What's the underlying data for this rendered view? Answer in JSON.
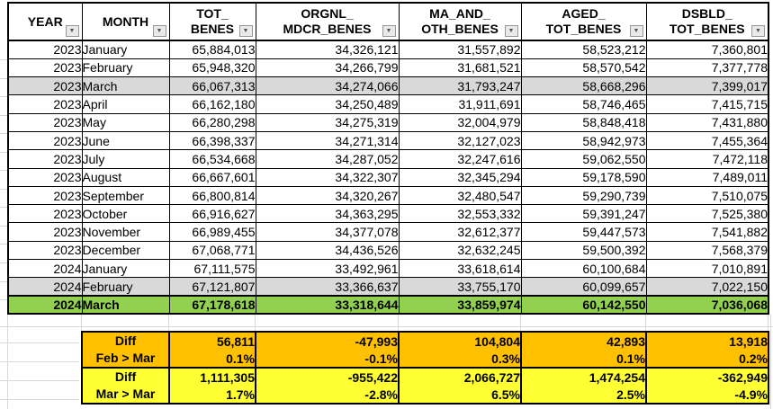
{
  "icons": {
    "filter": "▼"
  },
  "colors": {
    "row_highlight_gray": "#d9d9d9",
    "row_highlight_green": "#92d050",
    "summary_orange": "#ffc000",
    "summary_yellow": "#ffff33",
    "table_border": "#000000",
    "gridline": "#d8d8d8"
  },
  "columns": [
    {
      "l1": "YEAR",
      "l2": ""
    },
    {
      "l1": "MONTH",
      "l2": ""
    },
    {
      "l1": "TOT_",
      "l2": "BENES"
    },
    {
      "l1": "ORGNL_",
      "l2": "MDCR_BENES"
    },
    {
      "l1": "MA_AND_",
      "l2": "OTH_BENES"
    },
    {
      "l1": "AGED_",
      "l2": "TOT_BENES"
    },
    {
      "l1": "DSBLD_",
      "l2": "TOT_BENES"
    }
  ],
  "rows": [
    {
      "year": "2023",
      "month": "January",
      "tot": "65,884,013",
      "orgnl": "34,326,121",
      "ma": "31,557,892",
      "aged": "58,523,212",
      "dsbld": "7,360,801",
      "highlight": "none"
    },
    {
      "year": "2023",
      "month": "February",
      "tot": "65,948,320",
      "orgnl": "34,266,799",
      "ma": "31,681,521",
      "aged": "58,570,542",
      "dsbld": "7,377,778",
      "highlight": "none"
    },
    {
      "year": "2023",
      "month": "March",
      "tot": "66,067,313",
      "orgnl": "34,274,066",
      "ma": "31,793,247",
      "aged": "58,668,296",
      "dsbld": "7,399,017",
      "highlight": "gray"
    },
    {
      "year": "2023",
      "month": "April",
      "tot": "66,162,180",
      "orgnl": "34,250,489",
      "ma": "31,911,691",
      "aged": "58,746,465",
      "dsbld": "7,415,715",
      "highlight": "none"
    },
    {
      "year": "2023",
      "month": "May",
      "tot": "66,280,298",
      "orgnl": "34,275,319",
      "ma": "32,004,979",
      "aged": "58,848,418",
      "dsbld": "7,431,880",
      "highlight": "none"
    },
    {
      "year": "2023",
      "month": "June",
      "tot": "66,398,337",
      "orgnl": "34,271,314",
      "ma": "32,127,023",
      "aged": "58,942,973",
      "dsbld": "7,455,364",
      "highlight": "none"
    },
    {
      "year": "2023",
      "month": "July",
      "tot": "66,534,668",
      "orgnl": "34,287,052",
      "ma": "32,247,616",
      "aged": "59,062,550",
      "dsbld": "7,472,118",
      "highlight": "none"
    },
    {
      "year": "2023",
      "month": "August",
      "tot": "66,667,601",
      "orgnl": "34,322,307",
      "ma": "32,345,294",
      "aged": "59,178,590",
      "dsbld": "7,489,011",
      "highlight": "none"
    },
    {
      "year": "2023",
      "month": "September",
      "tot": "66,800,814",
      "orgnl": "34,320,267",
      "ma": "32,480,547",
      "aged": "59,290,739",
      "dsbld": "7,510,075",
      "highlight": "none"
    },
    {
      "year": "2023",
      "month": "October",
      "tot": "66,916,627",
      "orgnl": "34,363,295",
      "ma": "32,553,332",
      "aged": "59,391,247",
      "dsbld": "7,525,380",
      "highlight": "none"
    },
    {
      "year": "2023",
      "month": "November",
      "tot": "66,989,455",
      "orgnl": "34,377,078",
      "ma": "32,612,377",
      "aged": "59,447,573",
      "dsbld": "7,541,882",
      "highlight": "none"
    },
    {
      "year": "2023",
      "month": "December",
      "tot": "67,068,771",
      "orgnl": "34,436,526",
      "ma": "32,632,245",
      "aged": "59,500,392",
      "dsbld": "7,568,379",
      "highlight": "none"
    },
    {
      "year": "2024",
      "month": "January",
      "tot": "67,111,575",
      "orgnl": "33,492,961",
      "ma": "33,618,614",
      "aged": "60,100,684",
      "dsbld": "7,010,891",
      "highlight": "none"
    },
    {
      "year": "2024",
      "month": "February",
      "tot": "67,121,807",
      "orgnl": "33,366,637",
      "ma": "33,755,170",
      "aged": "60,099,657",
      "dsbld": "7,022,150",
      "highlight": "gray"
    },
    {
      "year": "2024",
      "month": "March",
      "tot": "67,178,618",
      "orgnl": "33,318,644",
      "ma": "33,859,974",
      "aged": "60,142,550",
      "dsbld": "7,036,068",
      "highlight": "green"
    }
  ],
  "summary": {
    "feb_mar": {
      "label1": "Diff",
      "label2": "Feb > Mar",
      "tot": "56,811",
      "tot_pct": "0.1%",
      "orgnl": "-47,993",
      "orgnl_pct": "-0.1%",
      "ma": "104,804",
      "ma_pct": "0.3%",
      "aged": "42,893",
      "aged_pct": "0.1%",
      "dsbld": "13,918",
      "dsbld_pct": "0.2%"
    },
    "mar_mar": {
      "label1": "Diff",
      "label2": "Mar > Mar",
      "tot": "1,111,305",
      "tot_pct": "1.7%",
      "orgnl": "-955,422",
      "orgnl_pct": "-2.8%",
      "ma": "2,066,727",
      "ma_pct": "6.5%",
      "aged": "1,474,254",
      "aged_pct": "2.5%",
      "dsbld": "-362,949",
      "dsbld_pct": "-4.9%"
    }
  }
}
